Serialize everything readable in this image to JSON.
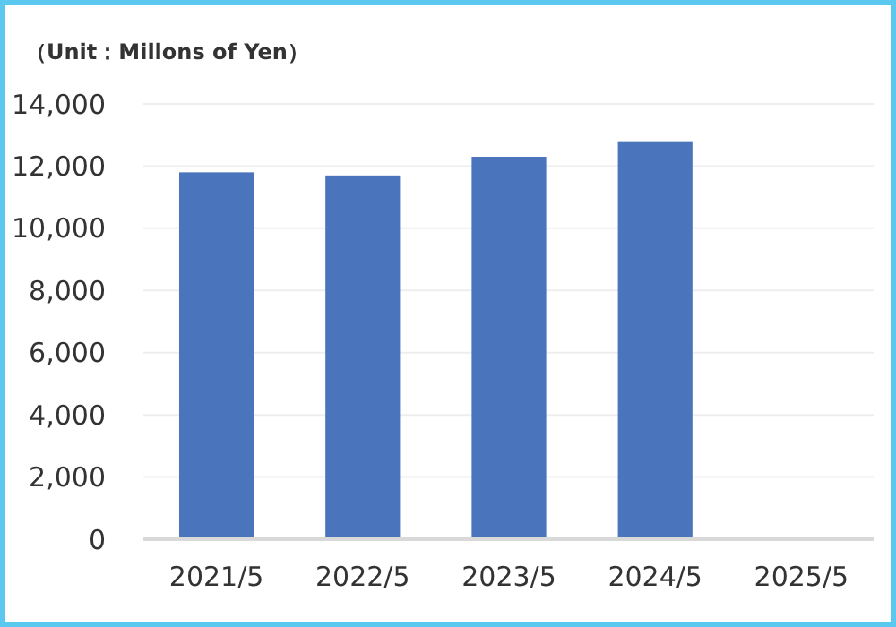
{
  "chart_data": {
    "type": "bar",
    "title": "（Unit：Millons of Yen）",
    "categories": [
      "2021/5",
      "2022/5",
      "2023/5",
      "2024/5",
      "2025/5"
    ],
    "values": [
      11800,
      11700,
      12300,
      12800,
      null
    ],
    "color": "#4a74bb",
    "ylim": [
      0,
      14000
    ],
    "yticks": [
      {
        "value": 0,
        "label": "0"
      },
      {
        "value": 2000,
        "label": "2,000"
      },
      {
        "value": 4000,
        "label": "4,000"
      },
      {
        "value": 6000,
        "label": "6,000"
      },
      {
        "value": 8000,
        "label": "8,000"
      },
      {
        "value": 10000,
        "label": "10,000"
      },
      {
        "value": 12000,
        "label": "12,000"
      },
      {
        "value": 14000,
        "label": "14,000"
      }
    ],
    "grid": true
  }
}
